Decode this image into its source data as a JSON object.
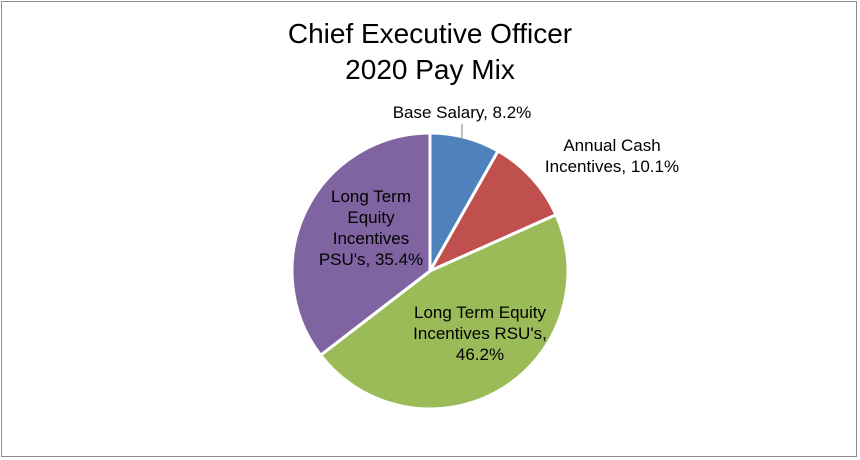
{
  "chart_data": {
    "type": "pie",
    "title": [
      "Chief Executive Officer",
      "2020 Pay Mix"
    ],
    "slices": [
      {
        "label": "Base Salary, 8.2%",
        "value": 8.2,
        "color": "#4f81bd"
      },
      {
        "label": "Annual Cash Incentives, 10.1%",
        "value": 10.1,
        "color": "#c0504d"
      },
      {
        "label": "Long Term Equity Incentives RSU's, 46.2%",
        "value": 46.2,
        "color": "#9bbb59"
      },
      {
        "label": "Long Term Equity Incentives PSU's, 35.4%",
        "value": 35.4,
        "color": "#8064a2"
      }
    ],
    "label_lines": [
      [
        "Base Salary, 8.2%"
      ],
      [
        "Annual Cash",
        "Incentives, 10.1%"
      ],
      [
        "Long Term Equity",
        "Incentives RSU's,",
        "46.2%"
      ],
      [
        "Long Term",
        "Equity",
        "Incentives",
        "PSU's, 35.4%"
      ]
    ],
    "start_angle_deg": 0,
    "direction": "clockwise",
    "legend": "none"
  }
}
